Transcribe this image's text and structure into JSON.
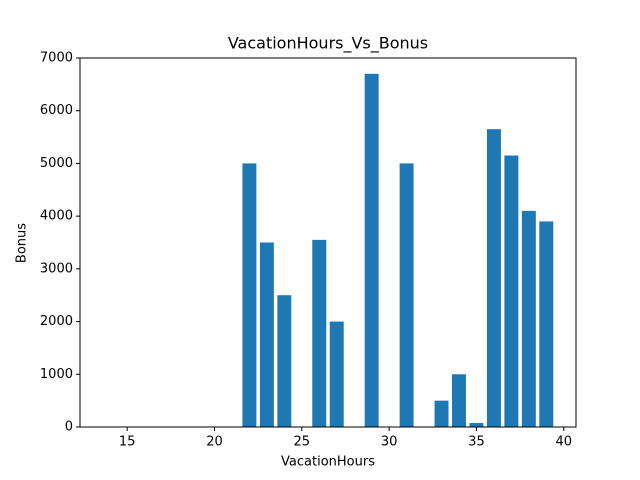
{
  "chart_data": {
    "type": "bar",
    "title": "VacationHours_Vs_Bonus",
    "x_label": "VacationHours",
    "y_label": "Bonus",
    "x": [
      14,
      22,
      23,
      24,
      26,
      27,
      29,
      31,
      33,
      34,
      35,
      36,
      37,
      38,
      39
    ],
    "values": [
      0,
      5000,
      3500,
      2500,
      3550,
      2000,
      6700,
      5000,
      500,
      1000,
      75,
      5650,
      5150,
      4100,
      3900
    ],
    "color": "#1f77b4",
    "xlim": [
      12.3,
      40.7
    ],
    "xticks": [
      15,
      20,
      25,
      30,
      35,
      40
    ],
    "ylim": [
      0,
      7000
    ],
    "yticks": [
      0,
      1000,
      2000,
      3000,
      4000,
      5000,
      6000,
      7000
    ],
    "bar_width": 0.8
  }
}
